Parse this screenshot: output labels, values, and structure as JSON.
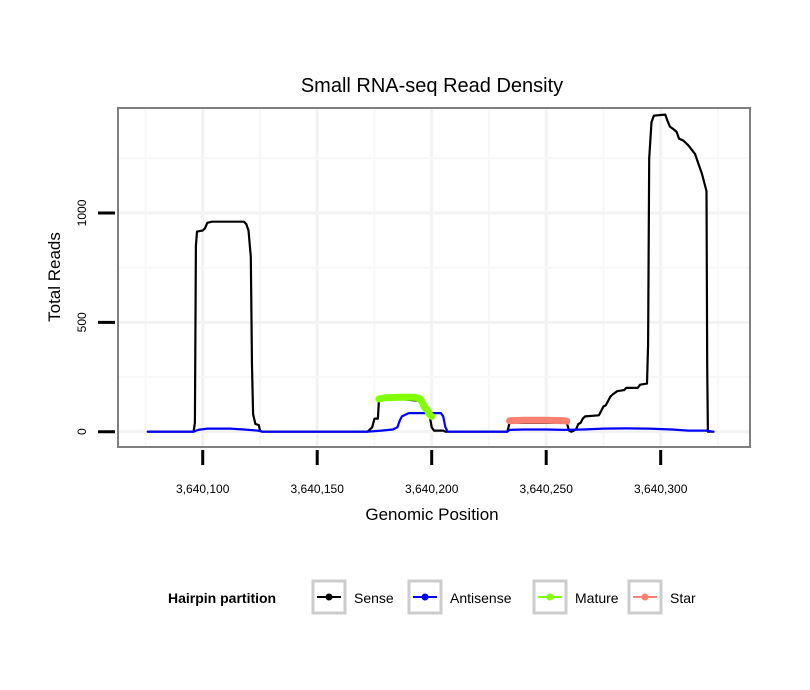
{
  "chart_data": {
    "type": "line",
    "title": "Small RNA-seq Read Density",
    "xlabel": "Genomic Position",
    "ylabel": "Total Reads",
    "xlim": [
      3640063,
      3640339
    ],
    "ylim": [
      -70,
      1480
    ],
    "x_ticks": [
      3640100,
      3640150,
      3640200,
      3640250,
      3640300
    ],
    "x_tick_labels": [
      "3,640,100",
      "3,640,150",
      "3,640,200",
      "3,640,250",
      "3,640,300"
    ],
    "y_ticks": [
      0,
      500,
      1000
    ],
    "y_tick_labels": [
      "0",
      "500",
      "1000"
    ],
    "grid": true,
    "legend": {
      "title": "Hairpin partition",
      "position": "bottom",
      "entries": [
        "Sense",
        "Antisense",
        "Mature",
        "Star"
      ]
    },
    "series": [
      {
        "name": "Sense",
        "color": "#000000",
        "points": [
          [
            3640076,
            0
          ],
          [
            3640096,
            0
          ],
          [
            3640096.6,
            40
          ],
          [
            3640097,
            850
          ],
          [
            3640097.5,
            915
          ],
          [
            3640100,
            920
          ],
          [
            3640101,
            930
          ],
          [
            3640102,
            955
          ],
          [
            3640104,
            960
          ],
          [
            3640118,
            960
          ],
          [
            3640119,
            950
          ],
          [
            3640120,
            920
          ],
          [
            3640121,
            800
          ],
          [
            3640121.5,
            300
          ],
          [
            3640122,
            80
          ],
          [
            3640123,
            35
          ],
          [
            3640124.5,
            30
          ],
          [
            3640125,
            5
          ],
          [
            3640126,
            0
          ],
          [
            3640172,
            0
          ],
          [
            3640174,
            20
          ],
          [
            3640175,
            60
          ],
          [
            3640176.5,
            60
          ],
          [
            3640177,
            150
          ],
          [
            3640186,
            150
          ],
          [
            3640196,
            140
          ],
          [
            3640199,
            80
          ],
          [
            3640200,
            20
          ],
          [
            3640201,
            5
          ],
          [
            3640205,
            5
          ],
          [
            3640206,
            0
          ],
          [
            3640233,
            0
          ],
          [
            3640234,
            40
          ],
          [
            3640259,
            40
          ],
          [
            3640260,
            5
          ],
          [
            3640261,
            0
          ],
          [
            3640263,
            10
          ],
          [
            3640264,
            35
          ],
          [
            3640265,
            40
          ],
          [
            3640266,
            60
          ],
          [
            3640267,
            70
          ],
          [
            3640273,
            75
          ],
          [
            3640274,
            95
          ],
          [
            3640275,
            115
          ],
          [
            3640276,
            120
          ],
          [
            3640277,
            140
          ],
          [
            3640278,
            160
          ],
          [
            3640279,
            170
          ],
          [
            3640281,
            185
          ],
          [
            3640284,
            190
          ],
          [
            3640285,
            200
          ],
          [
            3640290,
            200
          ],
          [
            3640291,
            215
          ],
          [
            3640294,
            220
          ],
          [
            3640294.5,
            400
          ],
          [
            3640295,
            1250
          ],
          [
            3640296,
            1415
          ],
          [
            3640297,
            1445
          ],
          [
            3640300,
            1448
          ],
          [
            3640302,
            1450
          ],
          [
            3640303,
            1420
          ],
          [
            3640304,
            1395
          ],
          [
            3640306,
            1380
          ],
          [
            3640307,
            1370
          ],
          [
            3640308,
            1340
          ],
          [
            3640310,
            1330
          ],
          [
            3640312,
            1310
          ],
          [
            3640315,
            1270
          ],
          [
            3640317,
            1210
          ],
          [
            3640318,
            1180
          ],
          [
            3640320,
            1100
          ],
          [
            3640320.3,
            300
          ],
          [
            3640320.6,
            0
          ],
          [
            3640323,
            0
          ]
        ]
      },
      {
        "name": "Antisense",
        "color": "#0000ff",
        "points": [
          [
            3640076,
            0
          ],
          [
            3640096,
            0
          ],
          [
            3640098,
            8
          ],
          [
            3640102,
            14
          ],
          [
            3640112,
            14
          ],
          [
            3640118,
            10
          ],
          [
            3640124,
            5
          ],
          [
            3640126,
            0
          ],
          [
            3640172,
            0
          ],
          [
            3640178,
            5
          ],
          [
            3640183,
            10
          ],
          [
            3640185,
            20
          ],
          [
            3640186,
            50
          ],
          [
            3640187,
            70
          ],
          [
            3640190,
            85
          ],
          [
            3640204,
            85
          ],
          [
            3640205,
            70
          ],
          [
            3640206,
            20
          ],
          [
            3640207,
            0
          ],
          [
            3640233,
            0
          ],
          [
            3640234,
            8
          ],
          [
            3640240,
            10
          ],
          [
            3640250,
            10
          ],
          [
            3640258,
            8
          ],
          [
            3640266,
            10
          ],
          [
            3640275,
            14
          ],
          [
            3640285,
            15
          ],
          [
            3640295,
            14
          ],
          [
            3640305,
            10
          ],
          [
            3640312,
            5
          ],
          [
            3640320,
            5
          ],
          [
            3640323,
            0
          ]
        ]
      },
      {
        "name": "Mature",
        "color": "#80ff00",
        "points": [
          [
            3640177,
            150
          ],
          [
            3640180,
            155
          ],
          [
            3640188,
            158
          ],
          [
            3640193,
            157
          ],
          [
            3640195,
            150
          ],
          [
            3640196,
            130
          ],
          [
            3640197,
            110
          ],
          [
            3640198,
            100
          ],
          [
            3640199,
            80
          ],
          [
            3640200,
            70
          ]
        ]
      },
      {
        "name": "Star",
        "color": "#fa8072",
        "points": [
          [
            3640234,
            50
          ],
          [
            3640240,
            52
          ],
          [
            3640250,
            52
          ],
          [
            3640258,
            50
          ],
          [
            3640259,
            48
          ]
        ]
      }
    ]
  }
}
